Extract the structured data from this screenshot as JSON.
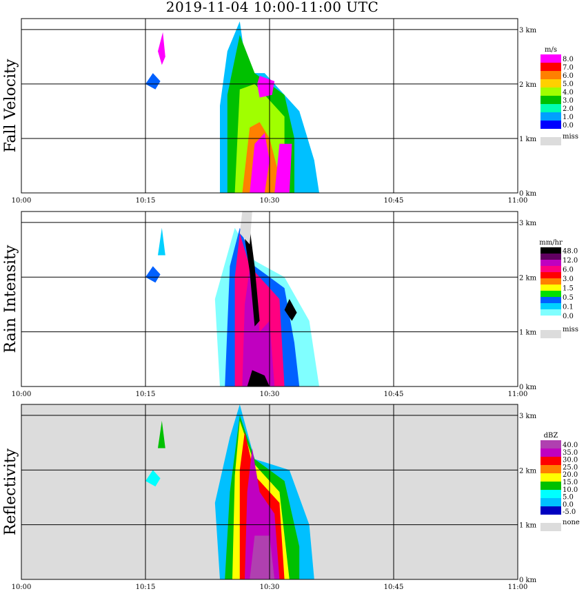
{
  "title": "2019-11-04   10:00-11:00 UTC",
  "colors": {
    "frame": "#000000",
    "grid": "#000000",
    "missing": "#dcdcdc"
  },
  "chart_data": [
    {
      "type": "heatmap",
      "ylabel": "Fall Velocity",
      "x_ticks": [
        "10:00",
        "10:15",
        "10:30",
        "10:45",
        "11:00"
      ],
      "y_ticks": [
        "0 km",
        "1 km",
        "2 km",
        "3 km"
      ],
      "xlim": [
        "10:00",
        "11:00"
      ],
      "ylim_km": [
        0,
        3.2
      ],
      "grid": true,
      "colorbar": {
        "unit": "m/s",
        "labels": [
          "8.0",
          "7.0",
          "6.0",
          "5.0",
          "4.0",
          "3.0",
          "2.0",
          "1.0",
          "0.0"
        ],
        "colors": [
          "#ff00ff",
          "#ff0000",
          "#ff8000",
          "#ffd000",
          "#a0ff00",
          "#00c000",
          "#00ffb0",
          "#00a0ff",
          "#0000ff"
        ],
        "missing_label": "miss",
        "missing_color": "#dcdcdc"
      },
      "background": "#ffffff"
    },
    {
      "type": "heatmap",
      "ylabel": "Rain Intensity",
      "x_ticks": [
        "10:00",
        "10:15",
        "10:30",
        "10:45",
        "11:00"
      ],
      "y_ticks": [
        "0 km",
        "1 km",
        "2 km",
        "3 km"
      ],
      "xlim": [
        "10:00",
        "11:00"
      ],
      "ylim_km": [
        0,
        3.2
      ],
      "grid": true,
      "colorbar": {
        "unit": "mm/hr",
        "labels": [
          "48.0",
          "12.0",
          "6.0",
          "3.0",
          "1.5",
          "0.5",
          "0.1",
          "0.0"
        ],
        "colors": [
          "#000000",
          "#600060",
          "#c000c0",
          "#ff0080",
          "#ff0000",
          "#ff8000",
          "#ffff00",
          "#00e000",
          "#0060ff",
          "#00d0ff",
          "#80ffff",
          "#ffffff"
        ],
        "missing_label": "miss",
        "missing_color": "#dcdcdc"
      },
      "background": "#ffffff"
    },
    {
      "type": "heatmap",
      "ylabel": "Reflectivity",
      "x_ticks": [
        "10:00",
        "10:15",
        "10:30",
        "10:45",
        "11:00"
      ],
      "y_ticks": [
        "0 km",
        "1 km",
        "2 km",
        "3 km"
      ],
      "xlim": [
        "10:00",
        "11:00"
      ],
      "ylim_km": [
        0,
        3.2
      ],
      "grid": true,
      "colorbar": {
        "unit": "dBZ",
        "labels": [
          "40.0",
          "35.0",
          "30.0",
          "25.0",
          "20.0",
          "15.0",
          "10.0",
          "5.0",
          "0.0",
          "-5.0"
        ],
        "colors": [
          "#b040b0",
          "#c000c0",
          "#ff0000",
          "#ff8000",
          "#ffff00",
          "#00c000",
          "#00ffff",
          "#00c0ff",
          "#0000c0"
        ],
        "missing_label": "none",
        "missing_color": "#dcdcdc"
      },
      "background": "#dcdcdc"
    }
  ]
}
